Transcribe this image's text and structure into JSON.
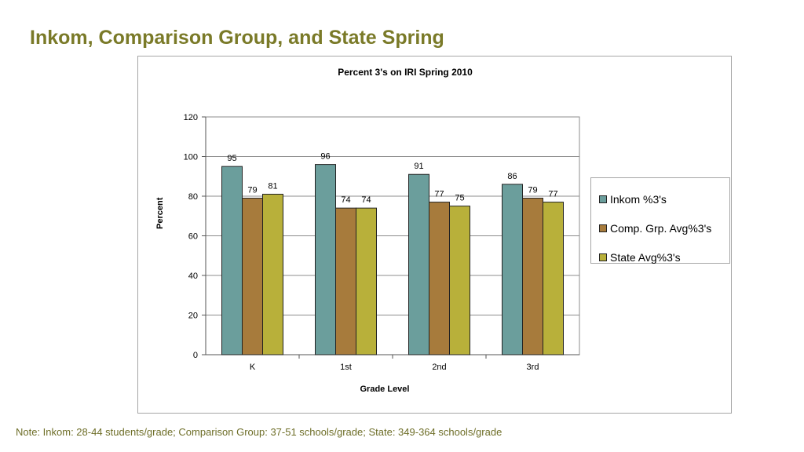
{
  "slide": {
    "title": "Inkom, Comparison Group, and State Spring",
    "note": "Note:  Inkom:  28-44 students/grade; Comparison Group: 37-51 schools/grade; State:  349-364 schools/grade"
  },
  "colors": {
    "title": "#7a7a28",
    "note": "#6e6e28",
    "inkom": "#6b9e9c",
    "comp": "#a77b3c",
    "state": "#b8b03a",
    "plot_bg": "#ffffff",
    "grid": "#8c8c8c"
  },
  "chart_data": {
    "type": "bar",
    "title": "Percent 3's on IRI Spring 2010",
    "xlabel": "Grade Level",
    "ylabel": "Percent",
    "ylim": [
      0,
      120
    ],
    "yticks": [
      0,
      20,
      40,
      60,
      80,
      100,
      120
    ],
    "grid": true,
    "legend_position": "right",
    "categories": [
      "K",
      "1st",
      "2nd",
      "3rd"
    ],
    "series": [
      {
        "name": "Inkom %3's",
        "color_key": "inkom",
        "values": [
          95,
          96,
          91,
          86
        ]
      },
      {
        "name": "Comp. Grp. Avg%3's",
        "color_key": "comp",
        "values": [
          79,
          74,
          77,
          79
        ]
      },
      {
        "name": "State Avg%3's",
        "color_key": "state",
        "values": [
          81,
          74,
          75,
          77
        ]
      }
    ]
  }
}
